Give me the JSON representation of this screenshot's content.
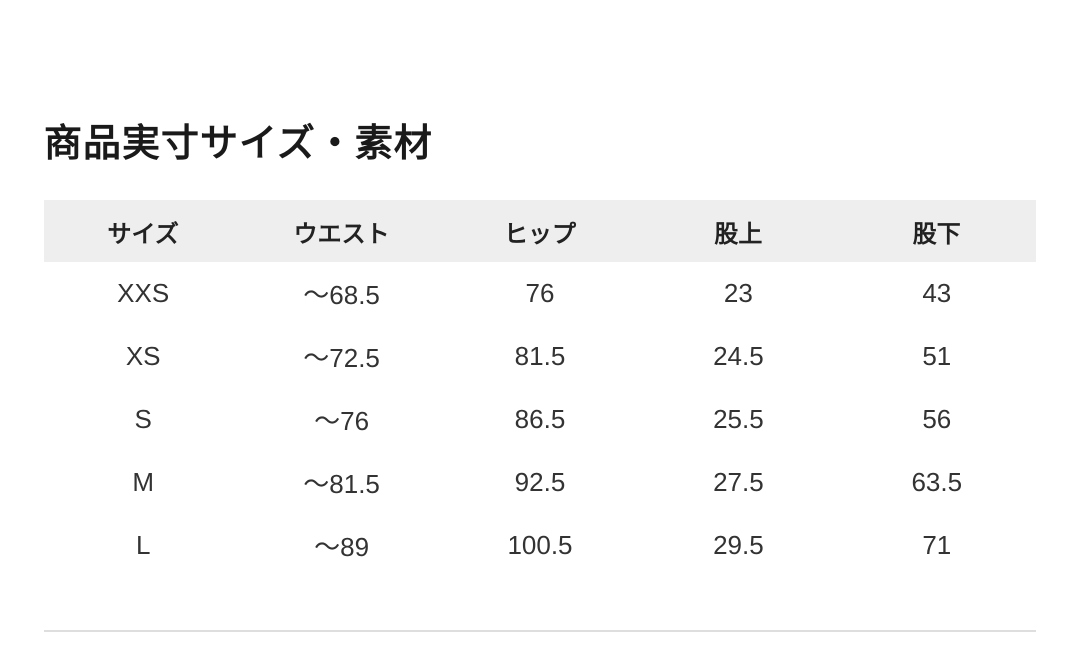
{
  "title": "商品実寸サイズ・素材",
  "table": {
    "headers": [
      "サイズ",
      "ウエスト",
      "ヒップ",
      "股上",
      "股下"
    ],
    "rows": [
      [
        "XXS",
        "〜68.5",
        "76",
        "23",
        "43"
      ],
      [
        "XS",
        "〜72.5",
        "81.5",
        "24.5",
        "51"
      ],
      [
        "S",
        "〜76",
        "86.5",
        "25.5",
        "56"
      ],
      [
        "M",
        "〜81.5",
        "92.5",
        "27.5",
        "63.5"
      ],
      [
        "L",
        "〜89",
        "100.5",
        "29.5",
        "71"
      ]
    ]
  },
  "colors": {
    "header_bg": "#eeeeee",
    "divider": "#dedede"
  }
}
